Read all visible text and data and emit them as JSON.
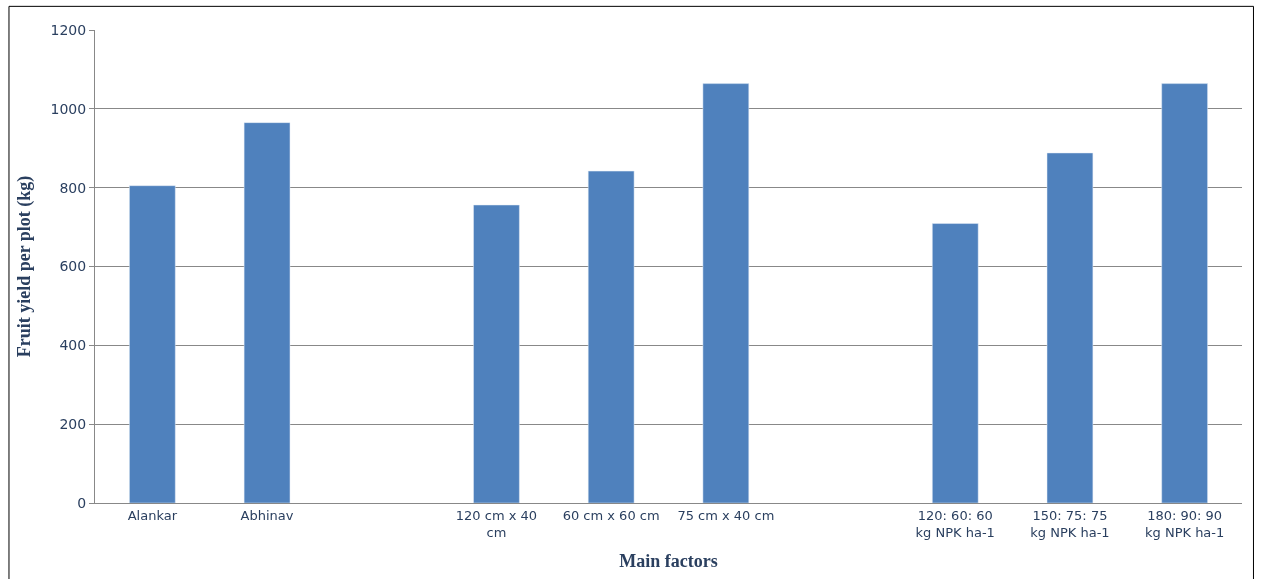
{
  "chart_data": {
    "type": "bar",
    "xlabel": "Main factors",
    "ylabel": "Fruit yield per plot (kg)",
    "categories": [
      "Alankar",
      "Abhinav",
      null,
      "120 cm x 40 cm",
      "60 cm x 60 cm",
      "75 cm x 40 cm",
      null,
      "120: 60: 60 kg NPK ha-1",
      "150: 75: 75 kg NPK ha-1",
      "180: 90: 90 kg NPK ha-1"
    ],
    "values": [
      805,
      965,
      null,
      756,
      842,
      1064,
      null,
      709,
      888,
      1064
    ],
    "color": "#4f81bd",
    "ylim": [
      0,
      1200
    ],
    "yticks": [
      0,
      200,
      400,
      600,
      800,
      1000,
      1200
    ],
    "grid": "y",
    "legend": false
  }
}
